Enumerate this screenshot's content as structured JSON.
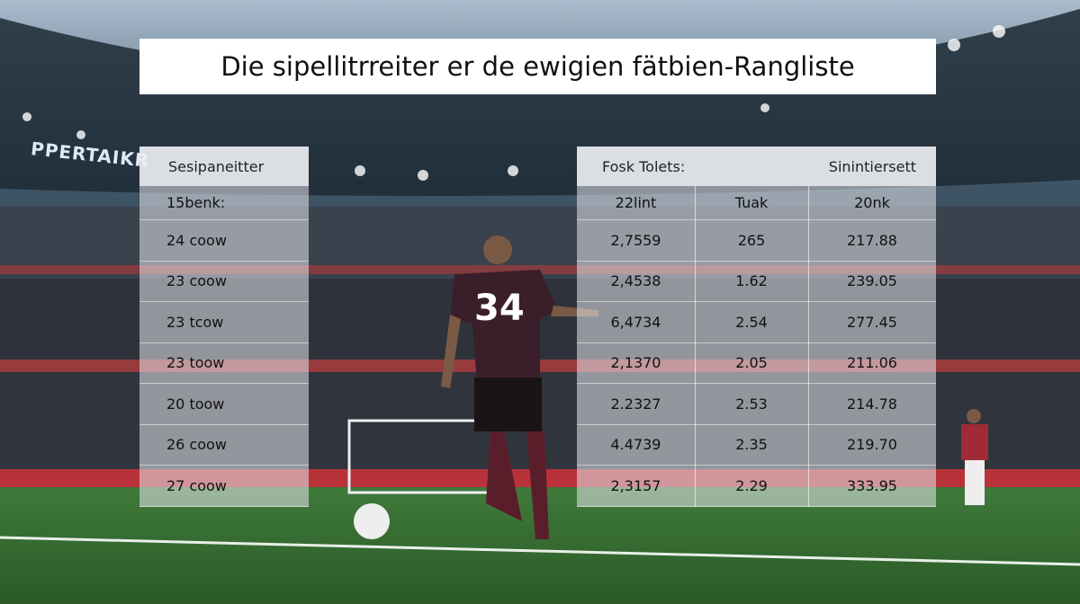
{
  "title": "Die sipellitrreiter er de ewigien fätbien-Rangliste",
  "stadium_sign": "PPERTAIKR",
  "jersey_number": "34",
  "left_table": {
    "header": "Sesipaneitter",
    "subheader": "15benk:",
    "rows": [
      "24 coow",
      "23 coow",
      "23 tcow",
      "23 toow",
      "20 toow",
      "26 coow",
      "27 coow"
    ]
  },
  "right_table": {
    "headers": [
      "Fosk Tolets:",
      "Sinintiersett"
    ],
    "columns": [
      "22lint",
      "Tuak",
      "20nk"
    ],
    "rows": [
      [
        "2,7559",
        "265",
        "217.88"
      ],
      [
        "2,4538",
        "1.62",
        "239.05"
      ],
      [
        "6,4734",
        "2.54",
        "277.45"
      ],
      [
        "2,1370",
        "2.05",
        "211.06"
      ],
      [
        "2.2327",
        "2.53",
        "214.78"
      ],
      [
        "4.4739",
        "2.35",
        "219.70"
      ],
      [
        "2,3157",
        "2.29",
        "333.95"
      ]
    ]
  }
}
